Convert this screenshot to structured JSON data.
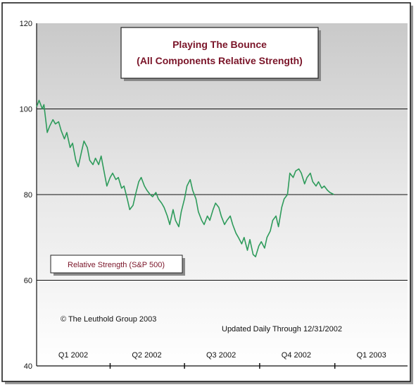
{
  "chart_data": {
    "type": "line",
    "title": "Playing The Bounce",
    "subtitle": "(All Components Relative Strength)",
    "ylim": [
      40,
      120
    ],
    "y_ticks": [
      "120",
      "100",
      "80",
      "60",
      "40"
    ],
    "y_tick_values": [
      120,
      100,
      80,
      60,
      40
    ],
    "x_tick_labels": [
      "Q1  2002",
      "Q2 2002",
      "Q3 2002",
      "Q4 2002",
      "Q1 2003"
    ],
    "x_range": [
      "2002-01-01",
      "2003-03-31"
    ],
    "series": [
      {
        "name": "Relative Strength (S&P 500)",
        "color": "#2e9b5b",
        "x": [
          "2002-01-01",
          "2002-01-04",
          "2002-01-08",
          "2002-01-10",
          "2002-01-14",
          "2002-01-17",
          "2002-01-21",
          "2002-01-24",
          "2002-01-28",
          "2002-01-31",
          "2002-02-04",
          "2002-02-07",
          "2002-02-11",
          "2002-02-14",
          "2002-02-18",
          "2002-02-21",
          "2002-02-25",
          "2002-02-28",
          "2002-03-04",
          "2002-03-07",
          "2002-03-11",
          "2002-03-14",
          "2002-03-18",
          "2002-03-21",
          "2002-03-25",
          "2002-03-28",
          "2002-04-01",
          "2002-04-04",
          "2002-04-08",
          "2002-04-11",
          "2002-04-15",
          "2002-04-18",
          "2002-04-22",
          "2002-04-25",
          "2002-04-29",
          "2002-05-02",
          "2002-05-06",
          "2002-05-09",
          "2002-05-13",
          "2002-05-16",
          "2002-05-20",
          "2002-05-23",
          "2002-05-27",
          "2002-05-30",
          "2002-06-03",
          "2002-06-06",
          "2002-06-10",
          "2002-06-13",
          "2002-06-17",
          "2002-06-20",
          "2002-06-24",
          "2002-06-27",
          "2002-07-01",
          "2002-07-04",
          "2002-07-08",
          "2002-07-11",
          "2002-07-15",
          "2002-07-18",
          "2002-07-22",
          "2002-07-25",
          "2002-07-29",
          "2002-08-01",
          "2002-08-05",
          "2002-08-08",
          "2002-08-12",
          "2002-08-15",
          "2002-08-19",
          "2002-08-22",
          "2002-08-26",
          "2002-08-29",
          "2002-09-02",
          "2002-09-05",
          "2002-09-09",
          "2002-09-12",
          "2002-09-16",
          "2002-09-19",
          "2002-09-23",
          "2002-09-26",
          "2002-09-30",
          "2002-10-03",
          "2002-10-07",
          "2002-10-10",
          "2002-10-14",
          "2002-10-17",
          "2002-10-21",
          "2002-10-24",
          "2002-10-28",
          "2002-10-31",
          "2002-11-04",
          "2002-11-07",
          "2002-11-11",
          "2002-11-14",
          "2002-11-18",
          "2002-11-21",
          "2002-11-25",
          "2002-11-28",
          "2002-12-02",
          "2002-12-05",
          "2002-12-09",
          "2002-12-12",
          "2002-12-16",
          "2002-12-19",
          "2002-12-23",
          "2002-12-26",
          "2002-12-31"
        ],
        "values": [
          100.5,
          102,
          100,
          101,
          94.5,
          96,
          97.5,
          96.5,
          97,
          95,
          93,
          94.5,
          91,
          92,
          88,
          86.5,
          90,
          92.5,
          91,
          88,
          87,
          88.5,
          87,
          89,
          85,
          82,
          84,
          85,
          83.5,
          84,
          81.5,
          82,
          79,
          76.5,
          77.5,
          80,
          83,
          84,
          82,
          81,
          80,
          79.5,
          80.5,
          79,
          78,
          77,
          75,
          73,
          76.5,
          74,
          72.5,
          76,
          79,
          82,
          83.5,
          81,
          79,
          76,
          74,
          73,
          75,
          74,
          76.5,
          78,
          77,
          75,
          73,
          74,
          75,
          73,
          71,
          70,
          68.5,
          70,
          67,
          69.5,
          66,
          65.5,
          68,
          69,
          67.5,
          70,
          71.5,
          74,
          75,
          72.5,
          77,
          79,
          80,
          85,
          84,
          85.5,
          86,
          85,
          82.5,
          84,
          85,
          83,
          82,
          83,
          81.5,
          82,
          81,
          80.5,
          80
        ]
      }
    ],
    "legend": "Relative Strength (S&P 500)",
    "annotations": [
      "© The Leuthold Group 2003",
      "Updated Daily Through 12/31/2002"
    ],
    "grid": true,
    "colors": {
      "line": "#2e9b5b",
      "title_text": "#7a1428",
      "frame": "#111111"
    }
  }
}
